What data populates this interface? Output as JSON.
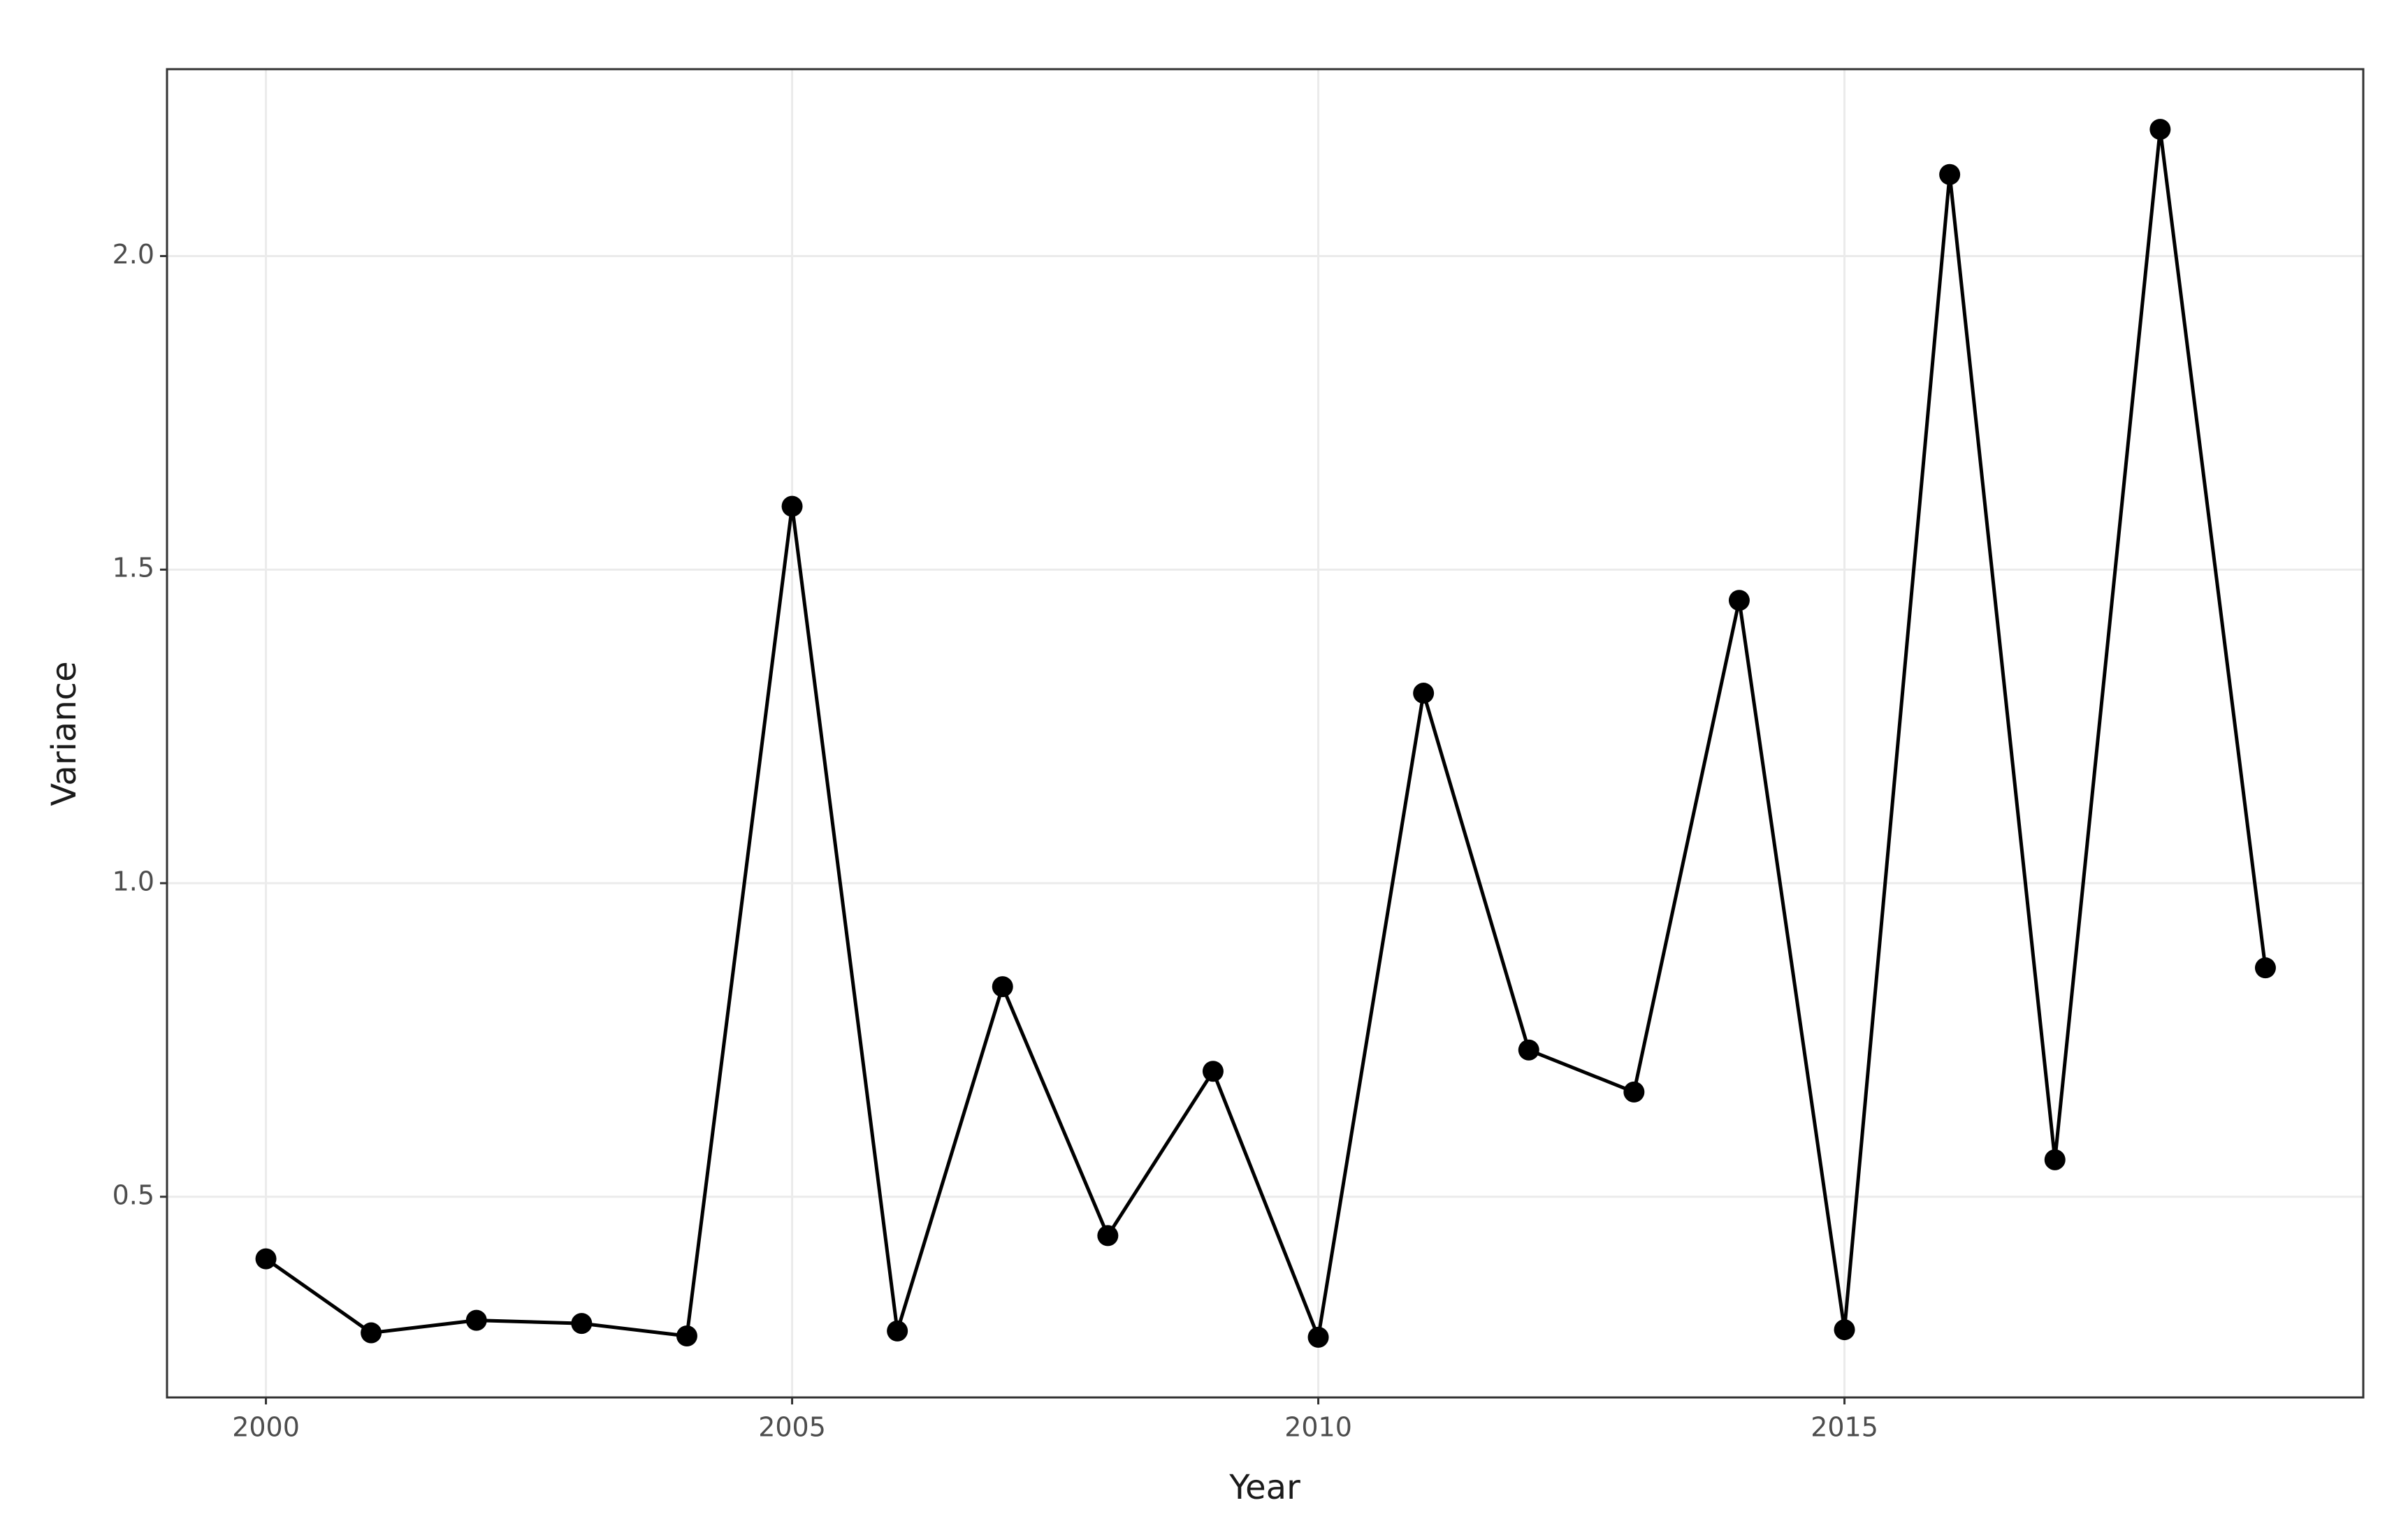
{
  "chart_data": {
    "type": "line",
    "x_label": "Year",
    "y_label": "Variance",
    "x": [
      2000,
      2001,
      2002,
      2003,
      2004,
      2005,
      2006,
      2007,
      2008,
      2009,
      2010,
      2011,
      2012,
      2013,
      2014,
      2015,
      2016,
      2017,
      2018,
      2019
    ],
    "series": [
      {
        "color": "#000000",
        "values": [
          0.401,
          0.283,
          0.303,
          0.298,
          0.278,
          1.601,
          0.286,
          0.835,
          0.438,
          0.7,
          0.276,
          1.303,
          0.734,
          0.667,
          1.451,
          0.288,
          2.13,
          0.559,
          2.202,
          0.865
        ]
      }
    ],
    "xlim": [
      1999.06,
      2019.93
    ],
    "ylim": [
      0.18,
      2.298
    ],
    "xticks": [
      2000,
      2005,
      2010,
      2015
    ],
    "yticks": [
      {
        "value": 0.5,
        "label": "0.5"
      },
      {
        "value": 1,
        "label": "1.0"
      },
      {
        "value": 1.5,
        "label": "1.5"
      },
      {
        "value": 2,
        "label": "2.0"
      }
    ],
    "grid": true
  }
}
